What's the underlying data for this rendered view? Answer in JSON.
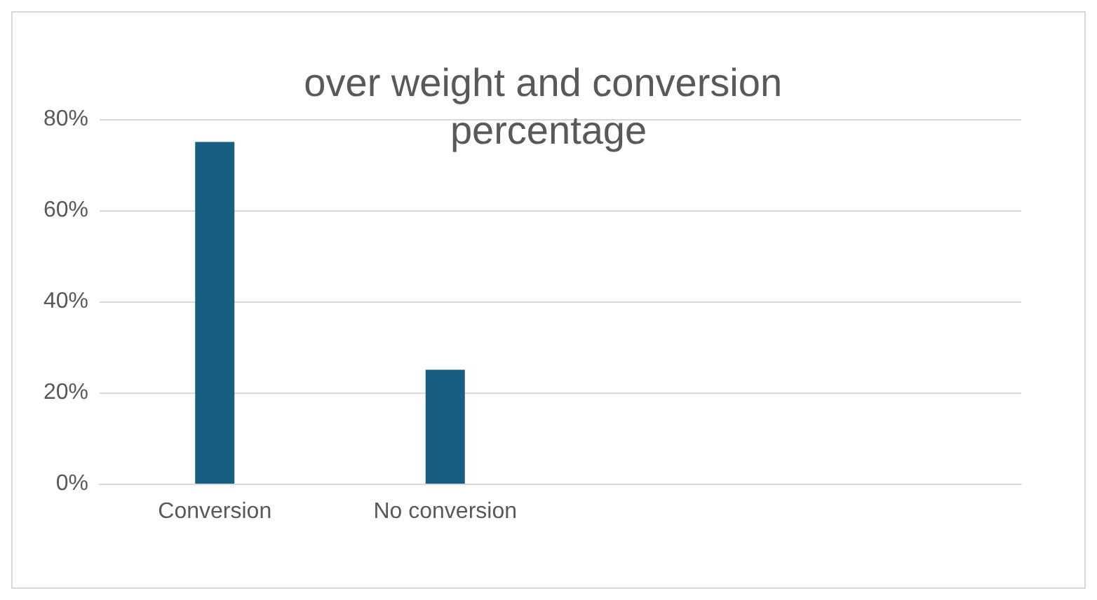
{
  "chart_data": {
    "type": "bar",
    "title": "over weight and conversion percentage",
    "categories": [
      "Conversion",
      "No conversion",
      null,
      null
    ],
    "series": [
      {
        "color": "#175e81",
        "values": [
          75,
          25,
          null,
          null
        ]
      }
    ],
    "ylim": [
      0,
      80
    ],
    "yticks": [
      {
        "value": 0,
        "label": "0%"
      },
      {
        "value": 20,
        "label": "20%"
      },
      {
        "value": 40,
        "label": "40%"
      },
      {
        "value": 60,
        "label": "60%"
      },
      {
        "value": 80,
        "label": "80%"
      }
    ],
    "grid": "y"
  }
}
